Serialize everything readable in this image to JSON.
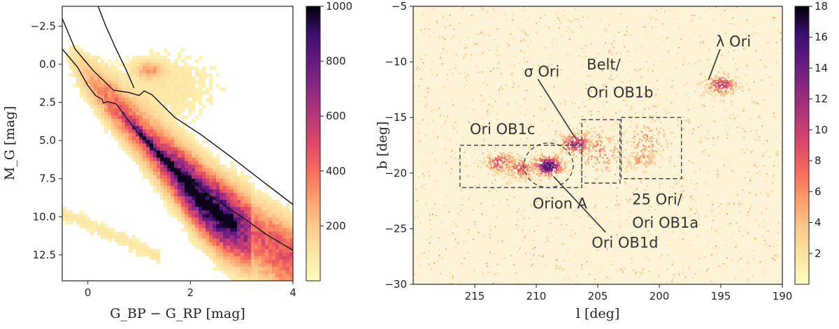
{
  "chart_data": [
    {
      "type": "heatmap",
      "title": "",
      "xlabel": "G_BP − G_RP [mag]",
      "ylabel": "M_G [mag]",
      "xlim": [
        -0.5,
        4.0
      ],
      "ylim": [
        14.2,
        -3.8
      ],
      "yaxis_inverted": true,
      "xticks": [
        "0",
        "2",
        "4"
      ],
      "xtick_values": [
        0,
        2,
        4
      ],
      "yticks": [
        "−2.5",
        "0.0",
        "2.5",
        "5.0",
        "7.5",
        "10.0",
        "12.5"
      ],
      "ytick_values": [
        -2.5,
        0.0,
        2.5,
        5.0,
        7.5,
        10.0,
        12.5
      ],
      "colorbar": {
        "min": 0,
        "max": 1000,
        "ticks": [
          "200",
          "400",
          "600",
          "800",
          "1000"
        ],
        "tick_values": [
          200,
          400,
          600,
          800,
          1000
        ],
        "colormap": "magma_r"
      },
      "density_ridge": [
        [
          0.7,
          3.4
        ],
        [
          1.2,
          5.2
        ],
        [
          1.7,
          7.0
        ],
        [
          2.2,
          8.8
        ],
        [
          2.6,
          10.0
        ]
      ],
      "isochrone_lines": [
        {
          "name": "lower boundary",
          "points": [
            [
              -0.5,
              -1.0
            ],
            [
              -0.2,
              0.2
            ],
            [
              0.0,
              1.4
            ],
            [
              0.15,
              2.05
            ],
            [
              0.28,
              2.3
            ],
            [
              0.3,
              2.55
            ],
            [
              0.38,
              2.45
            ],
            [
              0.55,
              2.6
            ],
            [
              1.0,
              4.6
            ],
            [
              1.5,
              6.3
            ],
            [
              2.0,
              7.6
            ],
            [
              2.5,
              8.9
            ],
            [
              3.0,
              10.0
            ],
            [
              3.5,
              11.2
            ],
            [
              4.0,
              12.2
            ]
          ]
        },
        {
          "name": "upper boundary",
          "points": [
            [
              -0.5,
              -3.0
            ],
            [
              -0.25,
              -1.0
            ],
            [
              0.1,
              0.4
            ],
            [
              0.5,
              1.7
            ],
            [
              0.8,
              1.85
            ],
            [
              1.0,
              2.05
            ],
            [
              1.1,
              1.75
            ],
            [
              1.25,
              2.0
            ],
            [
              1.7,
              3.5
            ],
            [
              2.2,
              4.6
            ],
            [
              2.8,
              6.1
            ],
            [
              3.3,
              7.4
            ],
            [
              4.0,
              9.2
            ]
          ]
        },
        {
          "name": "upper tail",
          "points": [
            [
              0.2,
              -3.8
            ],
            [
              0.35,
              -2.5
            ],
            [
              0.55,
              -1.0
            ],
            [
              0.75,
              0.4
            ],
            [
              0.9,
              1.55
            ]
          ]
        }
      ]
    },
    {
      "type": "heatmap",
      "title": "",
      "xlabel": "l [deg]",
      "ylabel": "b [deg]",
      "xlim": [
        220,
        190
      ],
      "ylim": [
        -30,
        -5
      ],
      "xaxis_inverted": true,
      "xticks": [
        "215",
        "210",
        "205",
        "200",
        "195",
        "190"
      ],
      "xtick_values": [
        215,
        210,
        205,
        200,
        195,
        190
      ],
      "yticks": [
        "−30",
        "−25",
        "−20",
        "−15",
        "−10",
        "−5"
      ],
      "ytick_values": [
        -30,
        -25,
        -20,
        -15,
        -10,
        -5
      ],
      "colorbar": {
        "min": 0,
        "max": 18,
        "ticks": [
          "2",
          "4",
          "6",
          "8",
          "10",
          "12",
          "14",
          "16",
          "18"
        ],
        "tick_values": [
          2,
          4,
          6,
          8,
          10,
          12,
          14,
          16,
          18
        ],
        "colormap": "magma_r"
      },
      "regions": [
        {
          "name": "Ori OB1c",
          "shape": "rect",
          "l_range": [
            216.2,
            206.3
          ],
          "b_range": [
            -17.5,
            -21.3
          ]
        },
        {
          "name": "Orion A",
          "shape": "circle",
          "center": [
            209.0,
            -19.3
          ],
          "radius_deg": 2.0
        },
        {
          "name": "Belt / Ori OB1b",
          "shape": "rect",
          "l_range": [
            206.3,
            203.2
          ],
          "b_range": [
            -15.2,
            -20.9
          ]
        },
        {
          "name": "25 Ori / Ori OB1a",
          "shape": "rect",
          "l_range": [
            203.1,
            198.2
          ],
          "b_range": [
            -15.0,
            -20.5
          ]
        }
      ],
      "annotations": [
        {
          "label": "σ Ori",
          "text_at": [
            211.0,
            -11.3
          ],
          "points_to": [
            206.8,
            -16.9
          ]
        },
        {
          "label": "Belt/",
          "text_at": [
            205.9,
            -10.7
          ],
          "points_to": null
        },
        {
          "label": "Ori OB1b",
          "text_at": [
            205.9,
            -13.2
          ],
          "points_to": null
        },
        {
          "label": "Ori OB1c",
          "text_at": [
            215.4,
            -16.5
          ],
          "points_to": null
        },
        {
          "label": "Orion A",
          "text_at": [
            210.3,
            -23.2
          ],
          "points_to": null
        },
        {
          "label": "Ori OB1d",
          "text_at": [
            205.5,
            -26.7
          ],
          "points_to": [
            208.6,
            -20.3
          ]
        },
        {
          "label": "25 Ori/",
          "text_at": [
            202.2,
            -22.8
          ],
          "points_to": null
        },
        {
          "label": "Ori OB1a",
          "text_at": [
            202.2,
            -24.9
          ],
          "points_to": null
        },
        {
          "label": "λ Ori",
          "text_at": [
            195.4,
            -8.6
          ],
          "points_to": [
            196.0,
            -11.6
          ]
        }
      ],
      "clusters": [
        {
          "name": "λ Ori",
          "l": 195.0,
          "b": -12.0,
          "peak": 9
        },
        {
          "name": "σ Ori",
          "l": 206.8,
          "b": -17.3,
          "peak": 11
        },
        {
          "name": "Orion A",
          "l": 209.1,
          "b": -19.3,
          "peak": 16
        },
        {
          "name": "Ori OB1c west",
          "l": 213.0,
          "b": -19.0,
          "peak": 8
        },
        {
          "name": "Ori OB1c",
          "l": 211.3,
          "b": -19.5,
          "peak": 7
        },
        {
          "name": "Belt",
          "l": 205.0,
          "b": -18.0,
          "peak": 5
        },
        {
          "name": "25 Ori",
          "l": 201.0,
          "b": -17.0,
          "peak": 4
        },
        {
          "name": "Ori OB1a",
          "l": 201.5,
          "b": -18.8,
          "peak": 4
        }
      ]
    }
  ]
}
